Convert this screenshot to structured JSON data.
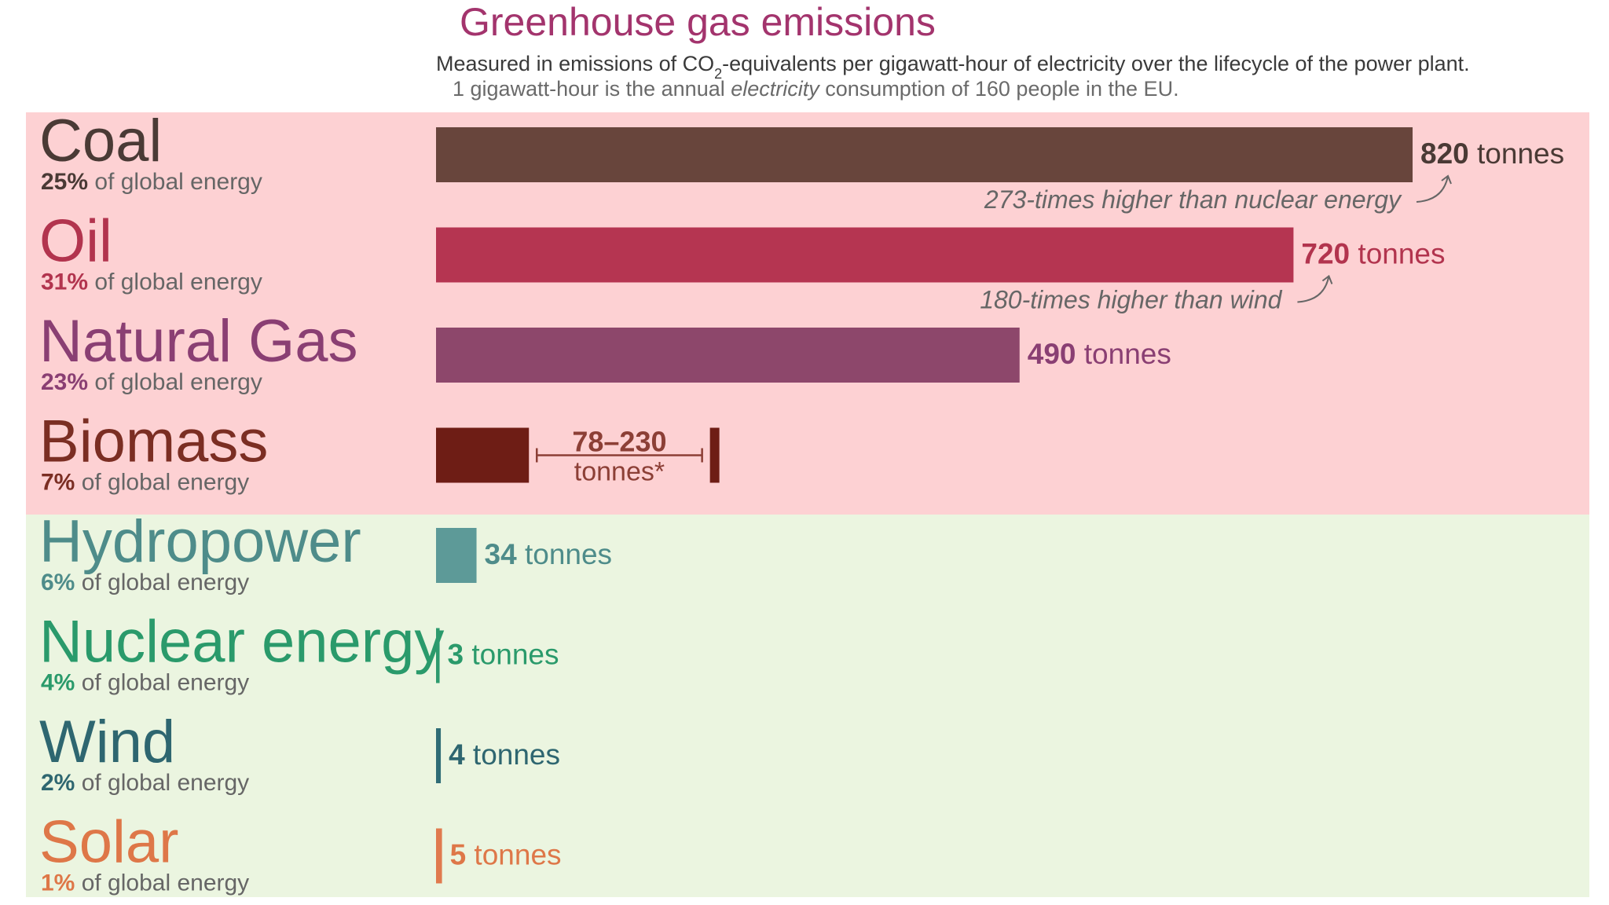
{
  "chart_data": {
    "type": "bar",
    "orientation": "horizontal",
    "title": "Greenhouse gas emissions",
    "subtitle_parts": [
      "Measured in emissions of CO",
      "2",
      "-equivalents per gigawatt-hour of electricity over the lifecycle of the power plant."
    ],
    "note_parts": [
      "1 gigawatt-hour is the annual ",
      "electricity",
      " consumption of 160 people in the EU."
    ],
    "share_suffix": " of global energy",
    "unit": " tonnes",
    "xlim": [
      0,
      820
    ],
    "categories": [
      "Coal",
      "Oil",
      "Natural Gas",
      "Biomass",
      "Hydropower",
      "Nuclear energy",
      "Wind",
      "Solar"
    ],
    "shares": [
      "25%",
      "31%",
      "23%",
      "7%",
      "6%",
      "4%",
      "2%",
      "1%"
    ],
    "values": [
      820,
      720,
      490,
      78,
      34,
      3,
      4,
      5
    ],
    "value_labels": [
      "820",
      "720",
      "490",
      "",
      "34",
      "3",
      "4",
      "5"
    ],
    "biomass_range": {
      "low": 78,
      "high": 230,
      "label": "78–230",
      "unit": "tonnes*"
    },
    "annotations": [
      {
        "category": "Coal",
        "text": "273-times higher than nuclear energy"
      },
      {
        "category": "Oil",
        "text": "180-times higher than wind"
      }
    ],
    "groups": [
      {
        "name": "fossil-and-biomass",
        "members": [
          "Coal",
          "Oil",
          "Natural Gas",
          "Biomass"
        ],
        "background": "#fdd1d3"
      },
      {
        "name": "low-carbon",
        "members": [
          "Hydropower",
          "Nuclear energy",
          "Wind",
          "Solar"
        ],
        "background": "#ebf5e0"
      }
    ],
    "colors": {
      "Coal": {
        "bar": "#68453c",
        "label": "#4a3a35"
      },
      "Oil": {
        "bar": "#b53551",
        "label": "#b2344e"
      },
      "Natural Gas": {
        "bar": "#8d476b",
        "label": "#8a3f73"
      },
      "Biomass": {
        "bar": "#6e1d15",
        "label": "#7b2e23"
      },
      "Hydropower": {
        "bar": "#5d9a98",
        "label": "#4e8c8a"
      },
      "Nuclear energy": {
        "bar": "#2d9a6e",
        "label": "#2a9a6b"
      },
      "Wind": {
        "bar": "#2f6c76",
        "label": "#2e6670"
      },
      "Solar": {
        "bar": "#e07a4e",
        "label": "#de7748"
      }
    }
  }
}
